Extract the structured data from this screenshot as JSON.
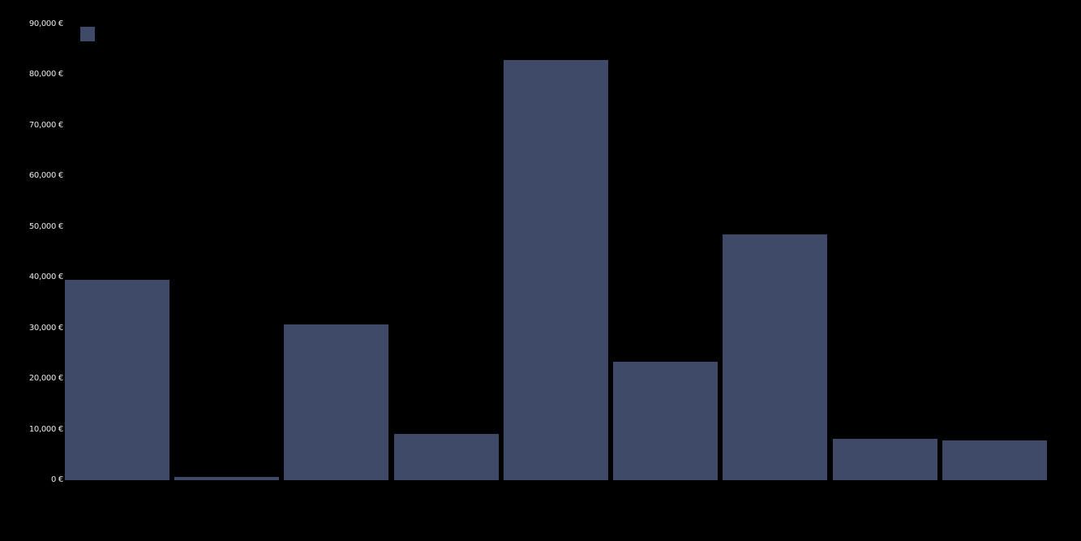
{
  "chart_data": {
    "type": "bar",
    "title": "",
    "xlabel": "",
    "ylabel": "",
    "values": [
      39500,
      700,
      30700,
      9100,
      83000,
      23400,
      48500,
      8200,
      7800
    ],
    "categories": [
      "",
      "",
      "",
      "",
      "",
      "",
      "",
      "",
      ""
    ],
    "ylim": [
      0,
      90000
    ],
    "y_tick_values": [
      0,
      10000,
      20000,
      30000,
      40000,
      50000,
      60000,
      70000,
      80000,
      90000
    ],
    "y_tick_labels": [
      "0 €",
      "10,000 €",
      "20,000 €",
      "30,000 €",
      "40,000 €",
      "50,000 €",
      "60,000 €",
      "70,000 €",
      "80,000 €",
      "90,000 €"
    ],
    "x_tick_labels_visible": false,
    "grid": false,
    "legend": {
      "position": "top-left",
      "entries": [
        {
          "label": "",
          "swatch_color": "#3e4a67"
        }
      ]
    },
    "colors": {
      "bar": "#3e4a67",
      "background": "#000000",
      "tick_text": "#e9e9e9"
    }
  }
}
